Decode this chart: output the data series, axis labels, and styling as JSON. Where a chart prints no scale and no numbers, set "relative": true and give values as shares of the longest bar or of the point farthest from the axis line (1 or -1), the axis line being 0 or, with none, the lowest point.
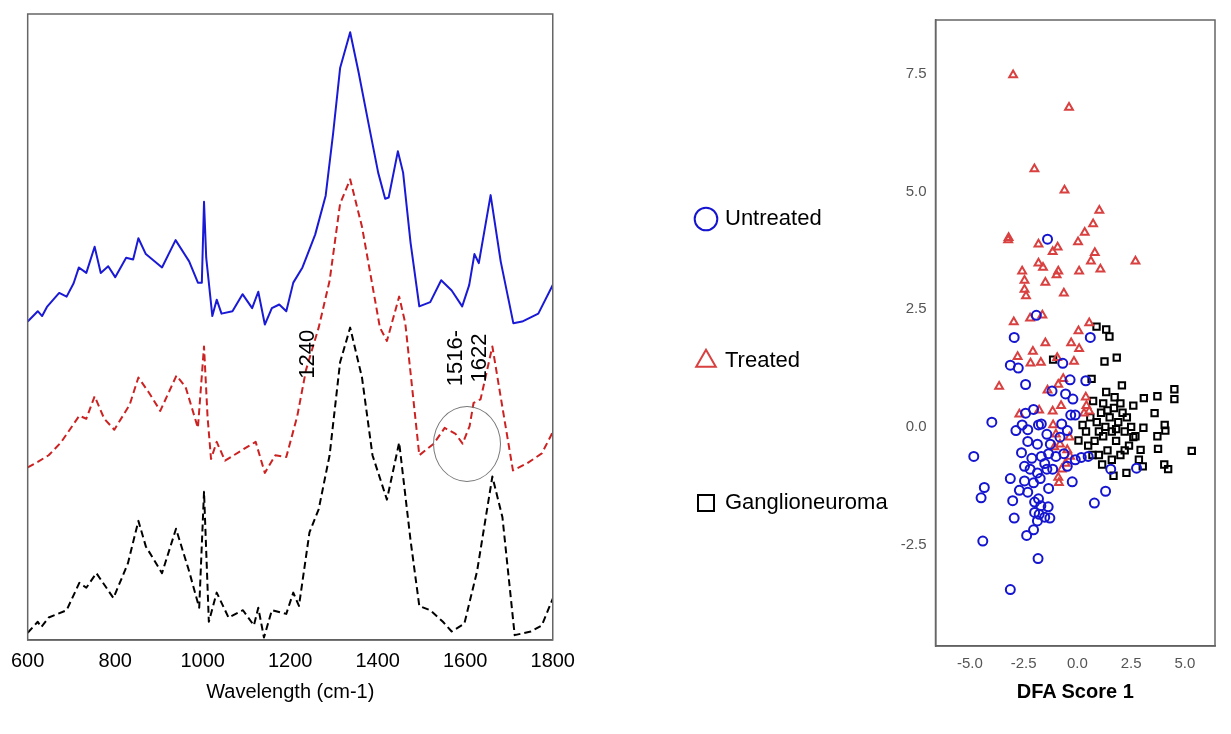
{
  "chart_data": [
    {
      "type": "line",
      "relative": true,
      "xlabel": "Wavelength (cm-1)",
      "xlim": [
        600,
        1800
      ],
      "xticks": [
        600,
        800,
        1000,
        1200,
        1400,
        1600,
        1800
      ],
      "tick_labels": "x",
      "grid": false,
      "marker": "none",
      "annotations": [
        {
          "text": "1240",
          "x": 1240,
          "y": 0.47
        },
        "1516-\n1622"
      ],
      "series": [
        {
          "color": "#1a1ad6",
          "line_style": "solid",
          "x": [
            600,
            623,
            633,
            644,
            672,
            689,
            705,
            717,
            734,
            753,
            767,
            784,
            800,
            825,
            841,
            853,
            870,
            907,
            938,
            969,
            989,
            998,
            1003,
            1008,
            1022,
            1032,
            1043,
            1068,
            1091,
            1113,
            1127,
            1142,
            1158,
            1175,
            1191,
            1207,
            1228,
            1257,
            1281,
            1298,
            1314,
            1337,
            1356,
            1380,
            1401,
            1417,
            1425,
            1446,
            1458,
            1475,
            1495,
            1520,
            1545,
            1569,
            1593,
            1609,
            1621,
            1631,
            1658,
            1681,
            1710,
            1730,
            1767,
            1800
          ],
          "values": [
            0.524,
            0.541,
            0.533,
            0.548,
            0.571,
            0.565,
            0.587,
            0.613,
            0.604,
            0.647,
            0.604,
            0.615,
            0.597,
            0.629,
            0.626,
            0.661,
            0.635,
            0.613,
            0.658,
            0.623,
            0.588,
            0.588,
            0.721,
            0.629,
            0.533,
            0.56,
            0.537,
            0.541,
            0.569,
            0.546,
            0.573,
            0.519,
            0.546,
            0.552,
            0.541,
            0.588,
            0.613,
            0.667,
            0.731,
            0.833,
            0.941,
            1.0,
            0.935,
            0.846,
            0.769,
            0.726,
            0.728,
            0.804,
            0.769,
            0.654,
            0.549,
            0.556,
            0.592,
            0.575,
            0.549,
            0.584,
            0.635,
            0.62,
            0.732,
            0.623,
            0.521,
            0.524,
            0.537,
            0.584
          ]
        },
        {
          "color": "#cc2222",
          "line_style": "dashed",
          "x": [
            600,
            623,
            648,
            676,
            718,
            734,
            753,
            775,
            798,
            833,
            853,
            878,
            903,
            940,
            961,
            989,
            1003,
            1011,
            1019,
            1032,
            1051,
            1100,
            1121,
            1142,
            1166,
            1191,
            1216,
            1236,
            1265,
            1290,
            1314,
            1337,
            1364,
            1405,
            1421,
            1449,
            1463,
            1495,
            1528,
            1553,
            1578,
            1594,
            1610,
            1619,
            1635,
            1662,
            1681,
            1709,
            1742,
            1775,
            1800
          ],
          "values": [
            0.284,
            0.293,
            0.304,
            0.325,
            0.369,
            0.364,
            0.401,
            0.364,
            0.346,
            0.387,
            0.432,
            0.406,
            0.377,
            0.435,
            0.416,
            0.349,
            0.483,
            0.368,
            0.298,
            0.326,
            0.295,
            0.317,
            0.326,
            0.275,
            0.304,
            0.301,
            0.368,
            0.444,
            0.514,
            0.591,
            0.718,
            0.758,
            0.68,
            0.514,
            0.492,
            0.565,
            0.521,
            0.304,
            0.323,
            0.349,
            0.339,
            0.323,
            0.352,
            0.39,
            0.396,
            0.483,
            0.4,
            0.279,
            0.291,
            0.307,
            0.342
          ]
        },
        {
          "color": "#000000",
          "line_style": "dashed",
          "x": [
            600,
            623,
            631,
            648,
            689,
            718,
            734,
            757,
            796,
            829,
            853,
            870,
            907,
            939,
            969,
            992,
            1003,
            1014,
            1032,
            1059,
            1092,
            1117,
            1127,
            1140,
            1158,
            1191,
            1207,
            1220,
            1244,
            1265,
            1290,
            1314,
            1337,
            1364,
            1388,
            1421,
            1449,
            1475,
            1495,
            1520,
            1549,
            1569,
            1598,
            1627,
            1662,
            1685,
            1713,
            1750,
            1775,
            1800
          ],
          "values": [
            0.012,
            0.03,
            0.021,
            0.037,
            0.049,
            0.094,
            0.086,
            0.11,
            0.069,
            0.126,
            0.196,
            0.154,
            0.11,
            0.183,
            0.113,
            0.053,
            0.244,
            0.03,
            0.078,
            0.037,
            0.049,
            0.024,
            0.053,
            0.004,
            0.049,
            0.043,
            0.078,
            0.056,
            0.177,
            0.215,
            0.304,
            0.457,
            0.514,
            0.432,
            0.304,
            0.231,
            0.325,
            0.164,
            0.056,
            0.049,
            0.03,
            0.014,
            0.027,
            0.113,
            0.269,
            0.202,
            0.008,
            0.014,
            0.024,
            0.068
          ]
        }
      ]
    },
    {
      "type": "scatter",
      "xlabel": "DFA Score 1",
      "xlim": [
        -6.6,
        6.4
      ],
      "xticks": [
        {
          "value": -5,
          "label": "-5.0"
        },
        -2.5,
        {
          "value": 0,
          "label": "0.0"
        },
        2.5,
        {
          "value": 5,
          "label": "5.0"
        }
      ],
      "ylim": [
        -4.66,
        8.65
      ],
      "yticks": [
        -2.5,
        {
          "value": 0,
          "label": "0.0"
        },
        2.5,
        {
          "value": 5,
          "label": "5.0"
        },
        7.5
      ],
      "grid": false,
      "legend": "left",
      "series": [
        {
          "name": "Untreated",
          "color": "#1515d0",
          "marker": "circle",
          "x": [
            -1.39,
            -1.91,
            -2.94,
            0.6,
            -3.12,
            -2.75,
            -0.68,
            -2.41,
            -1.18,
            -0.34,
            -0.55,
            -0.21,
            0.39,
            -3.98,
            -2.04,
            -2.41,
            -2.86,
            -2.57,
            -2.31,
            -1.81,
            -1.68,
            -0.31,
            -0.1,
            -0.73,
            -1.42,
            -2.31,
            -1.86,
            -4.82,
            -2.6,
            -2.12,
            -1.68,
            -1.34,
            -1.0,
            -1.42,
            -1.86,
            -2.2,
            -2.46,
            -2.46,
            -2.04,
            -1.73,
            -1.34,
            -2.7,
            -2.31,
            -3.12,
            -4.33,
            -4.48,
            -3.01,
            -1.99,
            -1.81,
            -1.7,
            -1.36,
            -1.99,
            -1.78,
            -1.52,
            -1.28,
            -1.86,
            -2.94,
            -2.04,
            -2.36,
            -4.4,
            -1.83,
            -3.12,
            -0.24,
            0.79,
            1.31,
            2.75,
            -0.1,
            0.18,
            0.5,
            -0.47,
            -0.63,
            -0.47,
            -0.81,
            -1.26,
            -1.52,
            -1.15,
            1.55
          ],
          "values": [
            3.99,
            2.37,
            1.9,
            1.9,
            1.31,
            1.25,
            1.35,
            0.9,
            0.76,
            1.0,
            0.7,
            0.59,
            0.98,
            0.1,
            0.37,
            0.29,
            -0.08,
            0.04,
            -0.06,
            0.04,
            0.06,
            0.25,
            0.25,
            0.06,
            -0.16,
            -0.31,
            -0.37,
            -0.63,
            -0.55,
            -0.67,
            -0.63,
            -0.57,
            -0.63,
            -0.9,
            -0.98,
            -0.9,
            -0.84,
            -1.15,
            -1.19,
            -1.1,
            -1.31,
            -1.35,
            -1.39,
            -1.1,
            -1.29,
            -1.51,
            -1.57,
            -1.6,
            -1.53,
            -1.68,
            -1.7,
            -1.82,
            -1.86,
            -1.92,
            -1.94,
            -2.0,
            -1.94,
            -2.19,
            -2.31,
            -2.43,
            -2.8,
            -3.46,
            -1.17,
            -1.62,
            -1.37,
            -0.88,
            -0.7,
            -0.65,
            -0.63,
            -0.84,
            -0.57,
            -0.08,
            -0.22,
            -0.37,
            -0.78,
            -0.9,
            -0.9
          ]
        },
        {
          "name": "Treated",
          "color": "#d94040",
          "marker": "triangle",
          "x": [
            -2.99,
            -0.39,
            -2.0,
            -0.6,
            1.02,
            0.73,
            0.34,
            -3.22,
            -3.2,
            -1.81,
            -0.92,
            -1.15,
            0.03,
            0.81,
            0.63,
            2.7,
            1.07,
            0.08,
            -0.89,
            -0.97,
            -1.81,
            -1.6,
            -2.57,
            -2.46,
            -2.46,
            -2.39,
            -1.49,
            -0.63,
            -2.96,
            -2.2,
            -1.63,
            0.55,
            0.05,
            -1.49,
            -0.29,
            0.08,
            -2.78,
            -2.07,
            -2.18,
            -1.7,
            -0.94,
            -0.16,
            -3.64,
            -1.39,
            -0.89,
            -0.66,
            -2.7,
            -1.78,
            -0.76,
            -1.15,
            0.39,
            0.42,
            0.55,
            0.31,
            -1.13,
            -1.0,
            -1.07,
            -0.81,
            -0.47,
            -0.34,
            -0.55,
            -0.73,
            -0.89,
            -0.86,
            -0.37
          ],
          "values": [
            7.48,
            6.79,
            5.48,
            5.03,
            4.6,
            4.31,
            4.13,
            3.97,
            4.02,
            3.88,
            3.82,
            3.72,
            3.93,
            3.7,
            3.52,
            3.52,
            3.35,
            3.31,
            3.31,
            3.23,
            3.48,
            3.39,
            3.31,
            3.11,
            2.92,
            2.78,
            3.07,
            2.84,
            2.23,
            2.31,
            2.37,
            2.21,
            2.04,
            1.78,
            1.78,
            1.66,
            1.49,
            1.6,
            1.35,
            1.37,
            1.47,
            1.39,
            0.86,
            0.78,
            0.9,
            1.02,
            0.27,
            0.35,
            0.45,
            0.33,
            0.63,
            0.45,
            0.33,
            0.29,
            0.04,
            -0.16,
            -0.43,
            -0.37,
            -0.49,
            -0.63,
            -0.78,
            -0.9,
            -1.08,
            -1.19,
            -0.22
          ]
        },
        {
          "name": "Ganglioneuroma",
          "color": "#000000",
          "marker": "square",
          "x": [
            0.89,
            1.34,
            1.49,
            -1.13,
            1.26,
            1.83,
            0.66,
            2.07,
            1.34,
            3.09,
            3.72,
            4.51,
            4.51,
            3.59,
            4.06,
            4.09,
            3.07,
            3.72,
            3.75,
            5.32,
            4.04,
            4.22,
            3.04,
            1.68,
            2.28,
            1.15,
            0.73,
            0.24,
            0.05,
            2.6,
            1.73,
            2.6,
            2.94,
            2.86,
            0.4,
            0.6,
            0.8,
            0.9,
            1.0,
            1.1,
            1.2,
            1.3,
            1.4,
            1.5,
            1.6,
            1.7,
            1.8,
            1.9,
            2.0,
            2.1,
            2.2,
            2.3,
            2.4,
            2.5,
            1.2,
            1.6,
            2.0,
            0.7,
            2.7,
            1.4,
            1.0,
            1.8,
            2.2,
            0.5
          ],
          "values": [
            2.13,
            2.07,
            1.92,
            1.43,
            1.39,
            1.47,
            1.02,
            0.88,
            0.74,
            0.61,
            0.65,
            0.8,
            0.59,
            0.29,
            0.04,
            -0.08,
            -0.02,
            -0.2,
            -0.47,
            -0.51,
            -0.8,
            -0.9,
            -0.84,
            -1.04,
            -0.98,
            -0.8,
            0.55,
            0.04,
            -0.29,
            0.45,
            0.63,
            -0.22,
            -0.49,
            -0.7,
            -0.1,
            0.2,
            -0.3,
            0.1,
            -0.6,
            0.3,
            -0.2,
            0.0,
            -0.5,
            0.2,
            -0.1,
            0.4,
            -0.3,
            0.1,
            -0.6,
            0.3,
            -0.1,
            0.2,
            -0.4,
            0.0,
            0.5,
            -0.7,
            0.5,
            -0.6,
            -0.2,
            0.35,
            -0.1,
            -0.05,
            -0.5,
            -0.4
          ]
        }
      ]
    }
  ]
}
